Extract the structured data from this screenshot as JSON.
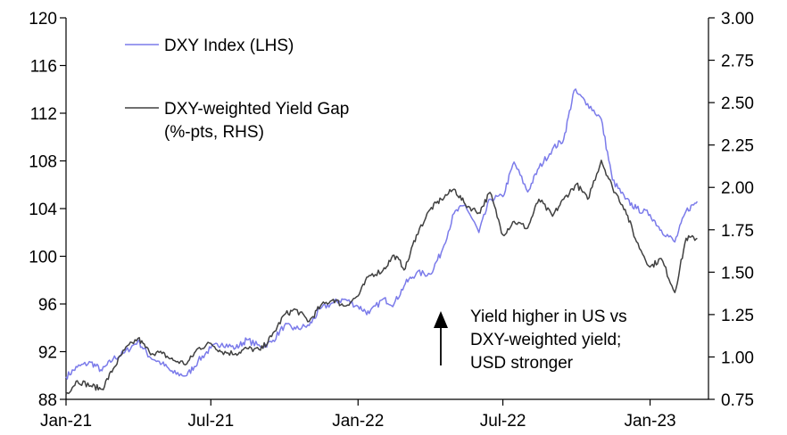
{
  "chart_data": {
    "type": "line",
    "title": "",
    "x_ticks": [
      "Jan-21",
      "Jul-21",
      "Jan-22",
      "Jul-22",
      "Jan-23"
    ],
    "y_left": {
      "ylim": [
        88,
        120
      ],
      "ticks": [
        "88",
        "92",
        "96",
        "100",
        "104",
        "108",
        "112",
        "116",
        "120"
      ]
    },
    "y_right": {
      "ylim": [
        0.75,
        3.0
      ],
      "ticks": [
        "0.75",
        "1.00",
        "1.25",
        "1.50",
        "1.75",
        "2.00",
        "2.25",
        "2.50",
        "2.75",
        "3.00"
      ]
    },
    "legend_position": "top-left",
    "series": [
      {
        "name": "DXY Index (LHS)",
        "axis": "left",
        "color": "#7b7bea",
        "points": [
          [
            "2021-01-01",
            89.9
          ],
          [
            "2021-01-15",
            90.7
          ],
          [
            "2021-02-01",
            91.1
          ],
          [
            "2021-02-15",
            90.4
          ],
          [
            "2021-03-01",
            91.4
          ],
          [
            "2021-03-15",
            91.9
          ],
          [
            "2021-04-01",
            92.9
          ],
          [
            "2021-04-15",
            91.6
          ],
          [
            "2021-05-01",
            91.0
          ],
          [
            "2021-05-15",
            90.2
          ],
          [
            "2021-06-01",
            90.0
          ],
          [
            "2021-06-15",
            91.2
          ],
          [
            "2021-07-01",
            92.3
          ],
          [
            "2021-07-15",
            92.7
          ],
          [
            "2021-08-01",
            92.3
          ],
          [
            "2021-08-15",
            93.0
          ],
          [
            "2021-09-01",
            92.4
          ],
          [
            "2021-09-15",
            92.8
          ],
          [
            "2021-10-01",
            94.2
          ],
          [
            "2021-10-15",
            93.9
          ],
          [
            "2021-11-01",
            94.2
          ],
          [
            "2021-11-15",
            95.6
          ],
          [
            "2021-12-01",
            96.1
          ],
          [
            "2021-12-15",
            96.4
          ],
          [
            "2022-01-01",
            95.8
          ],
          [
            "2022-01-15",
            95.2
          ],
          [
            "2022-02-01",
            96.4
          ],
          [
            "2022-02-15",
            96.0
          ],
          [
            "2022-03-01",
            97.7
          ],
          [
            "2022-03-15",
            98.6
          ],
          [
            "2022-04-01",
            98.5
          ],
          [
            "2022-04-15",
            100.3
          ],
          [
            "2022-05-01",
            103.6
          ],
          [
            "2022-05-15",
            104.3
          ],
          [
            "2022-06-01",
            102.0
          ],
          [
            "2022-06-15",
            104.8
          ],
          [
            "2022-07-01",
            105.0
          ],
          [
            "2022-07-15",
            107.9
          ],
          [
            "2022-08-01",
            105.4
          ],
          [
            "2022-08-15",
            107.4
          ],
          [
            "2022-09-01",
            109.0
          ],
          [
            "2022-09-15",
            109.8
          ],
          [
            "2022-09-28",
            113.9
          ],
          [
            "2022-10-15",
            112.8
          ],
          [
            "2022-11-01",
            111.5
          ],
          [
            "2022-11-15",
            106.4
          ],
          [
            "2022-12-01",
            104.8
          ],
          [
            "2022-12-15",
            104.0
          ],
          [
            "2023-01-01",
            103.5
          ],
          [
            "2023-01-15",
            102.2
          ],
          [
            "2023-02-01",
            101.2
          ],
          [
            "2023-02-15",
            103.8
          ],
          [
            "2023-03-01",
            104.6
          ]
        ]
      },
      {
        "name": "DXY-weighted Yield Gap (%-pts, RHS)",
        "axis": "right",
        "color": "#404040",
        "points": [
          [
            "2021-01-01",
            0.78
          ],
          [
            "2021-01-15",
            0.86
          ],
          [
            "2021-02-01",
            0.83
          ],
          [
            "2021-02-15",
            0.81
          ],
          [
            "2021-03-01",
            0.93
          ],
          [
            "2021-03-15",
            1.04
          ],
          [
            "2021-04-01",
            1.11
          ],
          [
            "2021-04-15",
            1.03
          ],
          [
            "2021-05-01",
            1.02
          ],
          [
            "2021-05-15",
            0.98
          ],
          [
            "2021-06-01",
            0.96
          ],
          [
            "2021-06-15",
            1.05
          ],
          [
            "2021-07-01",
            1.08
          ],
          [
            "2021-07-15",
            1.03
          ],
          [
            "2021-08-01",
            1.02
          ],
          [
            "2021-08-15",
            1.05
          ],
          [
            "2021-09-01",
            1.04
          ],
          [
            "2021-09-15",
            1.12
          ],
          [
            "2021-10-01",
            1.25
          ],
          [
            "2021-10-15",
            1.28
          ],
          [
            "2021-11-01",
            1.21
          ],
          [
            "2021-11-15",
            1.3
          ],
          [
            "2021-12-01",
            1.34
          ],
          [
            "2021-12-15",
            1.3
          ],
          [
            "2022-01-01",
            1.36
          ],
          [
            "2022-01-15",
            1.48
          ],
          [
            "2022-02-01",
            1.51
          ],
          [
            "2022-02-15",
            1.6
          ],
          [
            "2022-03-01",
            1.52
          ],
          [
            "2022-03-15",
            1.72
          ],
          [
            "2022-04-01",
            1.87
          ],
          [
            "2022-04-15",
            1.93
          ],
          [
            "2022-05-01",
            1.99
          ],
          [
            "2022-05-15",
            1.9
          ],
          [
            "2022-06-01",
            1.85
          ],
          [
            "2022-06-15",
            1.97
          ],
          [
            "2022-07-01",
            1.72
          ],
          [
            "2022-07-15",
            1.8
          ],
          [
            "2022-08-01",
            1.76
          ],
          [
            "2022-08-15",
            1.93
          ],
          [
            "2022-09-01",
            1.83
          ],
          [
            "2022-09-15",
            1.93
          ],
          [
            "2022-10-01",
            2.02
          ],
          [
            "2022-10-15",
            1.93
          ],
          [
            "2022-11-01",
            2.16
          ],
          [
            "2022-11-15",
            2.0
          ],
          [
            "2022-12-01",
            1.87
          ],
          [
            "2022-12-15",
            1.68
          ],
          [
            "2023-01-01",
            1.53
          ],
          [
            "2023-01-15",
            1.58
          ],
          [
            "2023-02-01",
            1.38
          ],
          [
            "2023-02-15",
            1.7
          ],
          [
            "2023-03-01",
            1.7
          ]
        ]
      }
    ],
    "annotation": {
      "lines": [
        "Yield higher in US vs",
        "DXY-weighted yield;",
        "USD stronger"
      ]
    }
  }
}
